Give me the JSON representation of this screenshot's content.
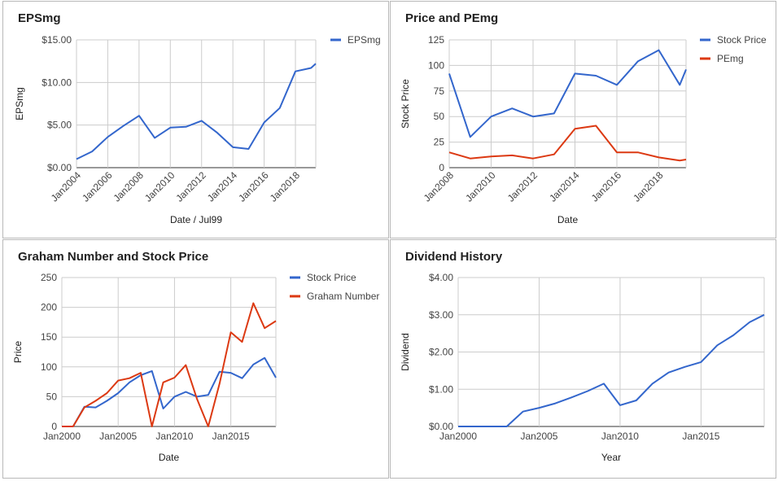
{
  "colors": {
    "blue": "#3366cc",
    "red": "#dc3912",
    "grid": "#cccccc",
    "axis": "#333333",
    "label": "#444444"
  },
  "chart_data": [
    {
      "type": "line",
      "title": "EPSmg",
      "xlabel": "Date / Jul99",
      "ylabel": "EPSmg",
      "legend_position": "top-right",
      "x_ticks": [
        "Jan2004",
        "Jan2006",
        "Jan2008",
        "Jan2010",
        "Jan2012",
        "Jan2014",
        "Jan2016",
        "Jan2018"
      ],
      "y_ticks": [
        "$0.00",
        "$5.00",
        "$10.00",
        "$15.00"
      ],
      "xlim": [
        2004,
        2019.3
      ],
      "ylim": [
        0,
        15
      ],
      "series": [
        {
          "name": "EPSmg",
          "x": [
            2004,
            2005,
            2006,
            2007,
            2008,
            2009,
            2010,
            2011,
            2012,
            2013,
            2014,
            2015,
            2016,
            2017,
            2018,
            2019,
            2019.3
          ],
          "y": [
            1.0,
            1.9,
            3.6,
            4.9,
            6.1,
            3.5,
            4.7,
            4.8,
            5.5,
            4.1,
            2.4,
            2.2,
            5.3,
            7.0,
            11.3,
            11.7,
            12.2
          ]
        }
      ]
    },
    {
      "type": "line",
      "title": "Price and PEmg",
      "xlabel": "Date",
      "ylabel": "Stock Price",
      "legend_position": "top-right",
      "x_ticks": [
        "Jan2008",
        "Jan2010",
        "Jan2012",
        "Jan2014",
        "Jan2016",
        "Jan2018"
      ],
      "y_ticks": [
        "0",
        "25",
        "50",
        "75",
        "100",
        "125"
      ],
      "xlim": [
        2008,
        2019.3
      ],
      "ylim": [
        0,
        125
      ],
      "series": [
        {
          "name": "Stock Price",
          "x": [
            2008,
            2009,
            2010,
            2011,
            2012,
            2013,
            2014,
            2015,
            2016,
            2017,
            2018,
            2019,
            2019.3
          ],
          "y": [
            92,
            30,
            50,
            58,
            50,
            53,
            92,
            90,
            81,
            104,
            115,
            81,
            96
          ]
        },
        {
          "name": "PEmg",
          "x": [
            2008,
            2009,
            2010,
            2011,
            2012,
            2013,
            2014,
            2015,
            2016,
            2017,
            2018,
            2019,
            2019.3
          ],
          "y": [
            15,
            9,
            11,
            12,
            9,
            13,
            38,
            41,
            15,
            15,
            10,
            7,
            8
          ]
        }
      ]
    },
    {
      "type": "line",
      "title": "Graham Number and Stock Price",
      "xlabel": "Date",
      "ylabel": "Price",
      "legend_position": "top-right",
      "x_ticks": [
        "Jan2000",
        "Jan2005",
        "Jan2010",
        "Jan2015"
      ],
      "y_ticks": [
        "0",
        "50",
        "100",
        "150",
        "200",
        "250"
      ],
      "xlim": [
        2000,
        2019
      ],
      "ylim": [
        0,
        250
      ],
      "series": [
        {
          "name": "Stock Price",
          "x": [
            2000,
            2001,
            2002,
            2003,
            2004,
            2005,
            2006,
            2007,
            2008,
            2009,
            2010,
            2011,
            2012,
            2013,
            2014,
            2015,
            2016,
            2017,
            2018,
            2019
          ],
          "y": [
            0,
            0,
            33,
            32,
            43,
            56,
            74,
            86,
            93,
            30,
            50,
            58,
            50,
            53,
            92,
            90,
            81,
            104,
            115,
            82
          ]
        },
        {
          "name": "Graham Number",
          "x": [
            2000,
            2001,
            2002,
            2003,
            2004,
            2005,
            2006,
            2007,
            2008,
            2009,
            2010,
            2011,
            2012,
            2013,
            2014,
            2015,
            2016,
            2017,
            2018,
            2019
          ],
          "y": [
            0,
            0,
            32,
            43,
            56,
            77,
            81,
            90,
            0,
            74,
            82,
            103,
            46,
            0,
            72,
            158,
            142,
            207,
            165,
            177
          ]
        }
      ]
    },
    {
      "type": "line",
      "title": "Dividend History",
      "xlabel": "Year",
      "ylabel": "Dividend",
      "legend_position": "none",
      "x_ticks": [
        "Jan2000",
        "Jan2005",
        "Jan2010",
        "Jan2015"
      ],
      "y_ticks": [
        "$0.00",
        "$1.00",
        "$2.00",
        "$3.00",
        "$4.00"
      ],
      "xlim": [
        2000,
        2018.9
      ],
      "ylim": [
        0,
        4
      ],
      "series": [
        {
          "name": "",
          "x": [
            2000,
            2001,
            2002,
            2003,
            2004,
            2005,
            2006,
            2007,
            2008,
            2009,
            2010,
            2011,
            2012,
            2013,
            2014,
            2015,
            2016,
            2017,
            2018,
            2018.9
          ],
          "y": [
            0,
            0,
            0,
            0,
            0.4,
            0.5,
            0.62,
            0.78,
            0.95,
            1.15,
            0.57,
            0.7,
            1.15,
            1.45,
            1.6,
            1.73,
            2.18,
            2.45,
            2.8,
            3.0
          ]
        }
      ]
    }
  ]
}
